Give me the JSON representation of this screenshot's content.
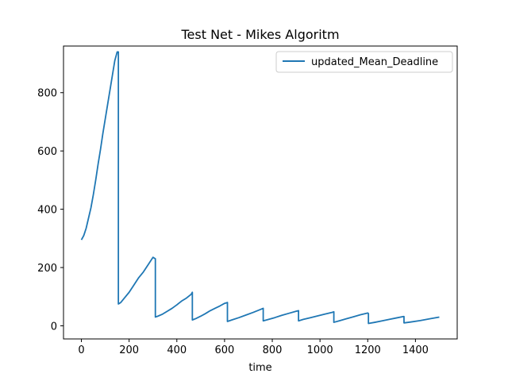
{
  "chart_data": {
    "type": "line",
    "title": "Test Net - Mikes Algoritm",
    "xlabel": "time",
    "ylabel": "",
    "xlim": [
      -75,
      1575
    ],
    "ylim": [
      -45,
      960
    ],
    "xticks": [
      0,
      200,
      400,
      600,
      800,
      1000,
      1200,
      1400
    ],
    "yticks": [
      0,
      200,
      400,
      600,
      800
    ],
    "legend": "top-right",
    "grid": false,
    "series": [
      {
        "name": "updated_Mean_Deadline",
        "color": "#1f77b4",
        "x": [
          0,
          10,
          20,
          30,
          40,
          50,
          60,
          70,
          80,
          90,
          100,
          110,
          120,
          130,
          140,
          150,
          155,
          155,
          165,
          180,
          200,
          220,
          240,
          260,
          280,
          300,
          310,
          310,
          320,
          340,
          360,
          380,
          400,
          420,
          440,
          460,
          465,
          465,
          480,
          500,
          520,
          540,
          560,
          580,
          600,
          612,
          612,
          630,
          660,
          690,
          720,
          750,
          762,
          762,
          780,
          810,
          840,
          870,
          900,
          910,
          910,
          930,
          960,
          990,
          1020,
          1050,
          1058,
          1058,
          1080,
          1110,
          1140,
          1170,
          1200,
          1203,
          1203,
          1230,
          1260,
          1290,
          1320,
          1350,
          1352,
          1352,
          1380,
          1420,
          1460,
          1500
        ],
        "y": [
          295,
          310,
          335,
          370,
          405,
          450,
          500,
          555,
          605,
          660,
          710,
          760,
          810,
          860,
          910,
          940,
          940,
          75,
          80,
          95,
          115,
          140,
          165,
          185,
          210,
          235,
          230,
          30,
          33,
          40,
          50,
          60,
          72,
          85,
          95,
          108,
          115,
          20,
          25,
          33,
          42,
          52,
          60,
          68,
          77,
          80,
          15,
          20,
          28,
          37,
          46,
          56,
          60,
          17,
          21,
          28,
          36,
          43,
          50,
          52,
          17,
          22,
          28,
          34,
          40,
          46,
          48,
          12,
          17,
          24,
          31,
          38,
          44,
          42,
          8,
          12,
          17,
          22,
          27,
          32,
          32,
          10,
          13,
          18,
          24,
          30
        ]
      }
    ]
  }
}
